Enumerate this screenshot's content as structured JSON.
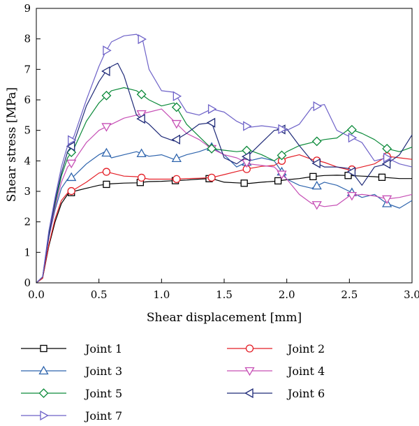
{
  "chart_data": {
    "type": "line",
    "title": "",
    "xlabel": "Shear displacement [mm]",
    "ylabel": "Shear stress [MPa]",
    "xlim": [
      0,
      3.0
    ],
    "ylim": [
      0,
      9
    ],
    "x_ticks": [
      "0.0",
      "0.5",
      "1.0",
      "1.5",
      "2.0",
      "2.5",
      "3.0"
    ],
    "y_ticks": [
      "0",
      "1",
      "2",
      "3",
      "4",
      "5",
      "6",
      "7",
      "8",
      "9"
    ],
    "grid": false,
    "legend_position": "bottom",
    "series": [
      {
        "name": "Joint 1",
        "color": "#000000",
        "marker": "square",
        "points": [
          [
            0,
            0
          ],
          [
            0.05,
            0.15
          ],
          [
            0.1,
            1.2
          ],
          [
            0.15,
            2.0
          ],
          [
            0.2,
            2.6
          ],
          [
            0.25,
            2.9
          ],
          [
            0.3,
            3.0
          ],
          [
            0.4,
            3.1
          ],
          [
            0.5,
            3.2
          ],
          [
            0.6,
            3.25
          ],
          [
            0.7,
            3.27
          ],
          [
            0.8,
            3.28
          ],
          [
            0.9,
            3.32
          ],
          [
            1.0,
            3.33
          ],
          [
            1.1,
            3.35
          ],
          [
            1.2,
            3.37
          ],
          [
            1.3,
            3.4
          ],
          [
            1.4,
            3.42
          ],
          [
            1.5,
            3.3
          ],
          [
            1.6,
            3.28
          ],
          [
            1.7,
            3.26
          ],
          [
            1.8,
            3.3
          ],
          [
            1.9,
            3.33
          ],
          [
            2.0,
            3.38
          ],
          [
            2.1,
            3.42
          ],
          [
            2.2,
            3.48
          ],
          [
            2.3,
            3.52
          ],
          [
            2.4,
            3.53
          ],
          [
            2.5,
            3.52
          ],
          [
            2.6,
            3.5
          ],
          [
            2.7,
            3.48
          ],
          [
            2.8,
            3.45
          ],
          [
            2.9,
            3.42
          ],
          [
            3.0,
            3.42
          ]
        ],
        "marker_x": [
          0.28,
          0.56,
          0.83,
          1.11,
          1.38,
          1.66,
          1.93,
          2.21,
          2.49,
          2.76
        ]
      },
      {
        "name": "Joint 2",
        "color": "#e41e26",
        "marker": "circle",
        "points": [
          [
            0,
            0
          ],
          [
            0.05,
            0.15
          ],
          [
            0.1,
            1.25
          ],
          [
            0.15,
            2.1
          ],
          [
            0.2,
            2.7
          ],
          [
            0.25,
            2.95
          ],
          [
            0.3,
            3.05
          ],
          [
            0.4,
            3.3
          ],
          [
            0.5,
            3.6
          ],
          [
            0.55,
            3.65
          ],
          [
            0.6,
            3.6
          ],
          [
            0.7,
            3.5
          ],
          [
            0.8,
            3.48
          ],
          [
            0.9,
            3.4
          ],
          [
            1.0,
            3.4
          ],
          [
            1.1,
            3.4
          ],
          [
            1.2,
            3.42
          ],
          [
            1.3,
            3.43
          ],
          [
            1.4,
            3.45
          ],
          [
            1.5,
            3.55
          ],
          [
            1.6,
            3.65
          ],
          [
            1.7,
            3.75
          ],
          [
            1.8,
            3.82
          ],
          [
            1.9,
            3.85
          ],
          [
            2.0,
            4.1
          ],
          [
            2.1,
            4.2
          ],
          [
            2.2,
            4.05
          ],
          [
            2.3,
            3.95
          ],
          [
            2.4,
            3.8
          ],
          [
            2.5,
            3.7
          ],
          [
            2.6,
            3.8
          ],
          [
            2.7,
            3.9
          ],
          [
            2.8,
            4.15
          ],
          [
            2.9,
            4.1
          ],
          [
            3.0,
            4.05
          ]
        ],
        "marker_x": [
          0.28,
          0.56,
          0.84,
          1.12,
          1.4,
          1.68,
          1.96,
          2.24,
          2.52,
          2.8
        ]
      },
      {
        "name": "Joint 3",
        "color": "#2e64ad",
        "marker": "triangle-up",
        "points": [
          [
            0,
            0
          ],
          [
            0.05,
            0.2
          ],
          [
            0.1,
            1.5
          ],
          [
            0.15,
            2.4
          ],
          [
            0.2,
            3.1
          ],
          [
            0.25,
            3.4
          ],
          [
            0.3,
            3.5
          ],
          [
            0.4,
            3.9
          ],
          [
            0.5,
            4.2
          ],
          [
            0.55,
            4.3
          ],
          [
            0.6,
            4.1
          ],
          [
            0.7,
            4.2
          ],
          [
            0.8,
            4.3
          ],
          [
            0.9,
            4.15
          ],
          [
            1.0,
            4.2
          ],
          [
            1.1,
            4.05
          ],
          [
            1.2,
            4.2
          ],
          [
            1.3,
            4.3
          ],
          [
            1.4,
            4.45
          ],
          [
            1.5,
            4.2
          ],
          [
            1.6,
            3.8
          ],
          [
            1.7,
            4.0
          ],
          [
            1.8,
            4.1
          ],
          [
            1.9,
            4.0
          ],
          [
            2.0,
            3.4
          ],
          [
            2.1,
            3.2
          ],
          [
            2.2,
            3.1
          ],
          [
            2.3,
            3.3
          ],
          [
            2.4,
            3.2
          ],
          [
            2.5,
            3.0
          ],
          [
            2.6,
            2.8
          ],
          [
            2.7,
            2.9
          ],
          [
            2.8,
            2.6
          ],
          [
            2.9,
            2.45
          ],
          [
            3.0,
            2.7
          ]
        ],
        "marker_x": [
          0.28,
          0.56,
          0.84,
          1.12,
          1.4,
          1.68,
          1.96,
          2.24,
          2.52,
          2.8
        ]
      },
      {
        "name": "Joint 4",
        "color": "#c64fb5",
        "marker": "triangle-down",
        "points": [
          [
            0,
            0
          ],
          [
            0.05,
            0.2
          ],
          [
            0.1,
            1.5
          ],
          [
            0.15,
            2.5
          ],
          [
            0.2,
            3.3
          ],
          [
            0.25,
            3.8
          ],
          [
            0.3,
            4.0
          ],
          [
            0.4,
            4.6
          ],
          [
            0.5,
            5.0
          ],
          [
            0.55,
            5.1
          ],
          [
            0.6,
            5.2
          ],
          [
            0.7,
            5.4
          ],
          [
            0.8,
            5.5
          ],
          [
            0.9,
            5.6
          ],
          [
            1.0,
            5.7
          ],
          [
            1.1,
            5.3
          ],
          [
            1.2,
            4.9
          ],
          [
            1.3,
            4.7
          ],
          [
            1.4,
            4.4
          ],
          [
            1.5,
            4.2
          ],
          [
            1.6,
            4.1
          ],
          [
            1.7,
            3.9
          ],
          [
            1.8,
            3.85
          ],
          [
            1.9,
            3.8
          ],
          [
            2.0,
            3.4
          ],
          [
            2.1,
            2.9
          ],
          [
            2.2,
            2.6
          ],
          [
            2.3,
            2.5
          ],
          [
            2.4,
            2.55
          ],
          [
            2.5,
            2.85
          ],
          [
            2.6,
            2.9
          ],
          [
            2.7,
            2.85
          ],
          [
            2.8,
            2.75
          ],
          [
            2.9,
            2.8
          ],
          [
            3.0,
            2.9
          ]
        ],
        "marker_x": [
          0.28,
          0.56,
          0.84,
          1.12,
          1.4,
          1.68,
          1.96,
          2.24,
          2.52,
          2.8
        ]
      },
      {
        "name": "Joint 5",
        "color": "#0c8a3a",
        "marker": "diamond",
        "points": [
          [
            0,
            0
          ],
          [
            0.05,
            0.2
          ],
          [
            0.1,
            1.6
          ],
          [
            0.15,
            2.6
          ],
          [
            0.2,
            3.5
          ],
          [
            0.25,
            4.1
          ],
          [
            0.3,
            4.4
          ],
          [
            0.4,
            5.3
          ],
          [
            0.5,
            5.9
          ],
          [
            0.55,
            6.1
          ],
          [
            0.6,
            6.3
          ],
          [
            0.7,
            6.4
          ],
          [
            0.8,
            6.3
          ],
          [
            0.9,
            6.0
          ],
          [
            1.0,
            5.8
          ],
          [
            1.1,
            5.9
          ],
          [
            1.2,
            5.2
          ],
          [
            1.3,
            4.8
          ],
          [
            1.4,
            4.4
          ],
          [
            1.5,
            4.35
          ],
          [
            1.6,
            4.3
          ],
          [
            1.7,
            4.35
          ],
          [
            1.8,
            4.2
          ],
          [
            1.9,
            4.0
          ],
          [
            2.0,
            4.3
          ],
          [
            2.1,
            4.5
          ],
          [
            2.2,
            4.6
          ],
          [
            2.3,
            4.7
          ],
          [
            2.4,
            4.75
          ],
          [
            2.5,
            5.05
          ],
          [
            2.6,
            4.9
          ],
          [
            2.7,
            4.7
          ],
          [
            2.8,
            4.4
          ],
          [
            2.9,
            4.3
          ],
          [
            3.0,
            4.45
          ]
        ],
        "marker_x": [
          0.28,
          0.56,
          0.84,
          1.12,
          1.4,
          1.68,
          1.96,
          2.24,
          2.52,
          2.8
        ]
      },
      {
        "name": "Joint 6",
        "color": "#1f2a78",
        "marker": "triangle-left",
        "points": [
          [
            0,
            0
          ],
          [
            0.05,
            0.2
          ],
          [
            0.1,
            1.5
          ],
          [
            0.15,
            2.7
          ],
          [
            0.2,
            3.6
          ],
          [
            0.25,
            4.3
          ],
          [
            0.3,
            4.6
          ],
          [
            0.4,
            5.8
          ],
          [
            0.5,
            6.6
          ],
          [
            0.55,
            6.9
          ],
          [
            0.6,
            7.1
          ],
          [
            0.65,
            7.2
          ],
          [
            0.7,
            6.8
          ],
          [
            0.8,
            5.5
          ],
          [
            0.9,
            5.2
          ],
          [
            1.0,
            4.8
          ],
          [
            1.1,
            4.65
          ],
          [
            1.2,
            4.9
          ],
          [
            1.3,
            5.2
          ],
          [
            1.4,
            5.25
          ],
          [
            1.5,
            4.1
          ],
          [
            1.6,
            3.9
          ],
          [
            1.7,
            4.2
          ],
          [
            1.8,
            4.6
          ],
          [
            1.9,
            5.0
          ],
          [
            2.0,
            5.05
          ],
          [
            2.1,
            4.5
          ],
          [
            2.2,
            4.0
          ],
          [
            2.3,
            3.8
          ],
          [
            2.4,
            3.8
          ],
          [
            2.5,
            3.75
          ],
          [
            2.6,
            3.2
          ],
          [
            2.7,
            3.8
          ],
          [
            2.8,
            3.9
          ],
          [
            2.9,
            4.2
          ],
          [
            3.0,
            4.85
          ]
        ],
        "marker_x": [
          0.28,
          0.56,
          0.84,
          1.12,
          1.4,
          1.68,
          1.96,
          2.24,
          2.52,
          2.8
        ]
      },
      {
        "name": "Joint 7",
        "color": "#6e62c8",
        "marker": "triangle-right",
        "points": [
          [
            0,
            0
          ],
          [
            0.05,
            0.2
          ],
          [
            0.1,
            1.7
          ],
          [
            0.15,
            2.8
          ],
          [
            0.2,
            3.8
          ],
          [
            0.25,
            4.5
          ],
          [
            0.3,
            4.8
          ],
          [
            0.4,
            6.0
          ],
          [
            0.5,
            7.1
          ],
          [
            0.55,
            7.55
          ],
          [
            0.6,
            7.9
          ],
          [
            0.7,
            8.1
          ],
          [
            0.8,
            8.15
          ],
          [
            0.85,
            7.95
          ],
          [
            0.9,
            7.0
          ],
          [
            1.0,
            6.3
          ],
          [
            1.1,
            6.25
          ],
          [
            1.2,
            5.6
          ],
          [
            1.3,
            5.5
          ],
          [
            1.4,
            5.7
          ],
          [
            1.5,
            5.6
          ],
          [
            1.6,
            5.3
          ],
          [
            1.7,
            5.1
          ],
          [
            1.8,
            5.15
          ],
          [
            1.9,
            5.1
          ],
          [
            2.0,
            5.0
          ],
          [
            2.1,
            5.2
          ],
          [
            2.2,
            5.75
          ],
          [
            2.3,
            5.85
          ],
          [
            2.4,
            5.0
          ],
          [
            2.5,
            4.8
          ],
          [
            2.6,
            4.6
          ],
          [
            2.7,
            4.0
          ],
          [
            2.8,
            4.1
          ],
          [
            2.9,
            3.9
          ],
          [
            3.0,
            3.8
          ]
        ],
        "marker_x": [
          0.28,
          0.56,
          0.84,
          1.12,
          1.4,
          1.68,
          1.96,
          2.24,
          2.52,
          2.8
        ]
      }
    ]
  }
}
